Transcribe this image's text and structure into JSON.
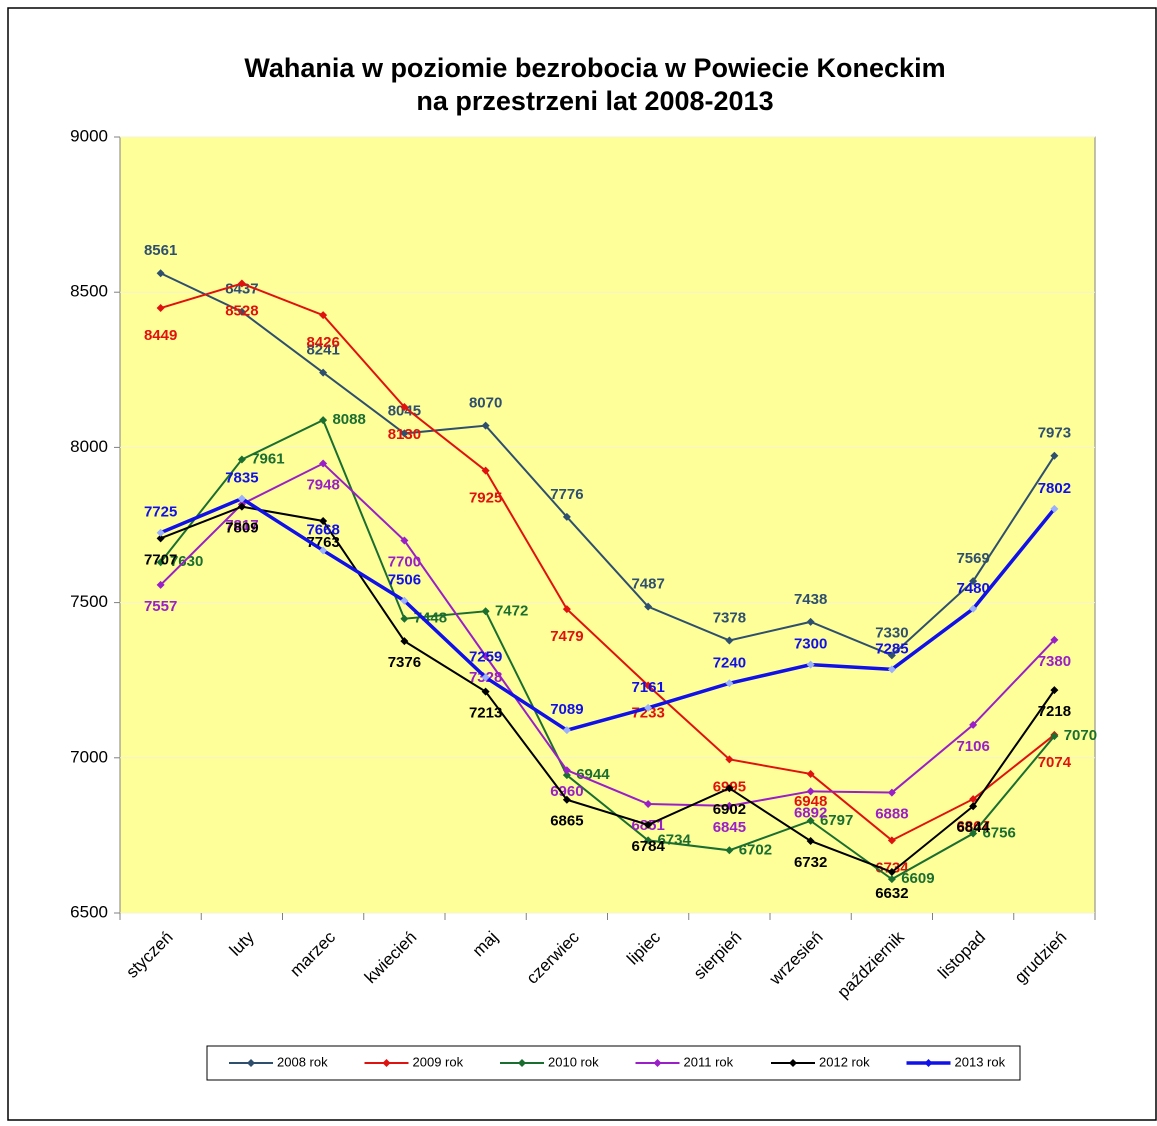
{
  "chart_data": {
    "type": "line",
    "title": [
      "Wahania w poziomie bezrobocia w Powiecie Koneckim",
      "na przestrzeni lat 2008-2013"
    ],
    "categories": [
      "styczeń",
      "luty",
      "marzec",
      "kwiecień",
      "maj",
      "czerwiec",
      "lipiec",
      "sierpień",
      "wrzesień",
      "październik",
      "listopad",
      "grudzień"
    ],
    "series": [
      {
        "name": "2008 rok",
        "color": "#2f4f6f",
        "values": [
          8561,
          8437,
          8241,
          8045,
          8070,
          7776,
          7487,
          7378,
          7438,
          7330,
          7569,
          7973
        ]
      },
      {
        "name": "2009 rok",
        "color": "#e0120f",
        "values": [
          8449,
          8528,
          8426,
          8130,
          7925,
          7479,
          7233,
          6995,
          6948,
          6734,
          6867,
          7074
        ]
      },
      {
        "name": "2010 rok",
        "color": "#1a6e30",
        "values": [
          7630,
          7961,
          8088,
          7448,
          7472,
          6944,
          6734,
          6702,
          6797,
          6609,
          6756,
          7070
        ]
      },
      {
        "name": "2011 rok",
        "color": "#9a1fc8",
        "values": [
          7557,
          7817,
          7948,
          7700,
          7328,
          6960,
          6851,
          6845,
          6892,
          6888,
          7106,
          7380
        ]
      },
      {
        "name": "2012 rok",
        "color": "#000000",
        "values": [
          7707,
          7809,
          7763,
          7376,
          7213,
          6865,
          6784,
          6902,
          6732,
          6632,
          6844,
          7218
        ]
      },
      {
        "name": "2013 rok",
        "color": "#1010e8",
        "values": [
          7725,
          7835,
          7668,
          7506,
          7259,
          7089,
          7161,
          7240,
          7300,
          7285,
          7480,
          7802
        ]
      }
    ],
    "ylim": [
      6500,
      9000
    ],
    "yticks": [
      6500,
      7000,
      7500,
      8000,
      8500,
      9000
    ],
    "grid": true
  }
}
